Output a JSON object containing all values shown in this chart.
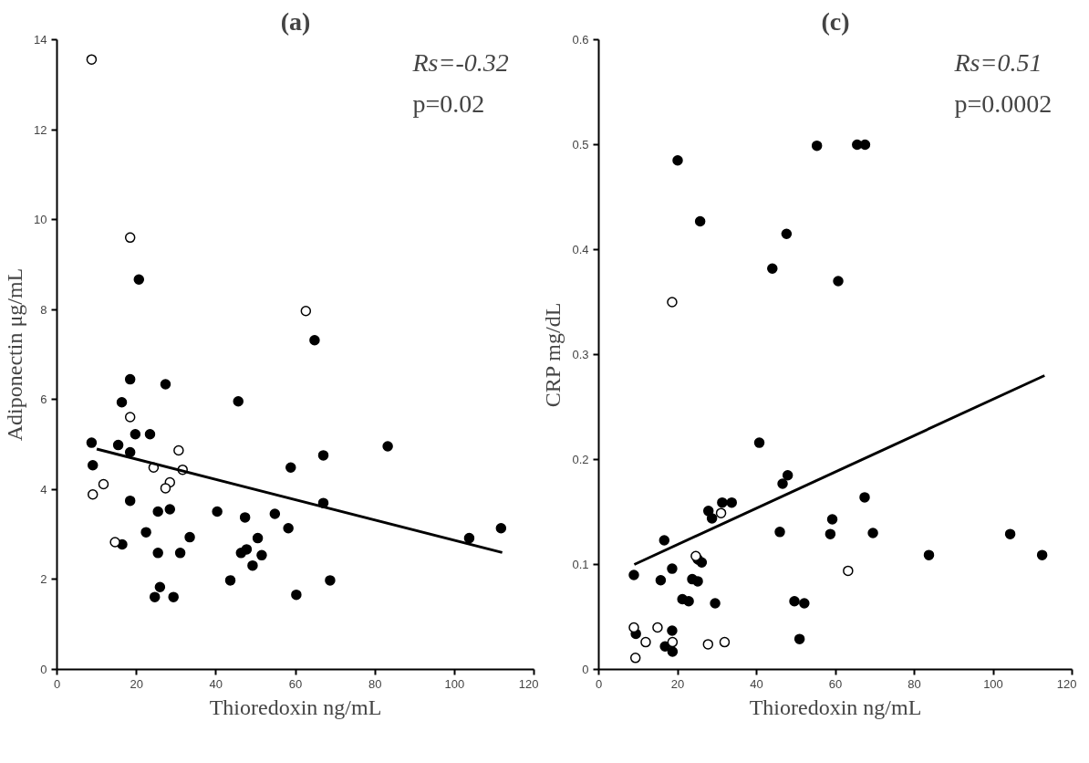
{
  "chart_data": [
    {
      "type": "scatter",
      "title": "(a)",
      "xlabel": "Thioredoxin ng/mL",
      "ylabel": "Adiponectin μg/mL",
      "xlim": [
        0,
        120
      ],
      "xticks": [
        0,
        20,
        40,
        60,
        80,
        100,
        120
      ],
      "ylim": [
        0,
        14
      ],
      "yticks": [
        0,
        2,
        4,
        6,
        8,
        10,
        12,
        14
      ],
      "annotations": [
        "Rs=-0.32",
        "p=0.02"
      ],
      "series": [
        {
          "color": "#000000",
          "marker": "circle",
          "x": [
            64.8,
            67.0,
            67.0,
            68.7,
            58.8,
            58.2,
            60.2,
            54.8,
            51.5,
            50.5,
            49.2,
            47.3,
            47.7,
            46.3,
            45.6,
            43.6,
            40.3,
            33.4,
            31.0,
            29.3,
            27.3,
            28.4,
            25.4,
            25.4,
            25.9,
            24.6,
            23.4,
            22.4,
            20.6,
            19.7,
            18.4,
            18.4,
            18.4,
            16.3,
            15.4,
            16.4,
            8.7,
            9.0,
            111.7,
            103.7,
            83.2
          ],
          "values": [
            7.32,
            4.76,
            3.7,
            1.98,
            4.49,
            3.14,
            1.66,
            3.46,
            2.54,
            2.92,
            2.31,
            3.38,
            2.67,
            2.59,
            5.96,
            1.98,
            3.51,
            2.94,
            2.59,
            1.61,
            6.34,
            3.56,
            3.51,
            2.59,
            1.83,
            1.61,
            5.23,
            3.05,
            8.67,
            5.23,
            6.45,
            4.83,
            3.75,
            5.94,
            4.99,
            2.78,
            5.04,
            4.54,
            3.14,
            2.92,
            4.96
          ]
        },
        {
          "color": "#ffffff",
          "marker": "circle",
          "x": [
            62.6,
            8.7,
            18.4,
            18.4,
            30.6,
            31.6,
            28.4,
            27.3,
            24.3,
            14.6,
            11.7,
            9.0
          ],
          "values": [
            7.97,
            13.56,
            9.6,
            5.61,
            4.87,
            4.44,
            4.16,
            4.03,
            4.49,
            2.83,
            4.12,
            3.89
          ]
        },
        {
          "type": "line",
          "color": "#000000",
          "x": [
            10,
            112
          ],
          "values": [
            4.9,
            2.6
          ]
        }
      ]
    },
    {
      "type": "scatter",
      "title": "(c)",
      "xlabel": "Thioredoxin ng/mL",
      "ylabel": "CRP mg/dL",
      "xlim": [
        0,
        120
      ],
      "xticks": [
        0,
        20,
        40,
        60,
        80,
        100,
        120
      ],
      "ylim": [
        0,
        0.6
      ],
      "yticks": [
        0,
        0.1,
        0.2,
        0.3,
        0.4,
        0.5,
        0.6
      ],
      "annotations": [
        "Rs=0.51",
        "p=0.0002"
      ],
      "series": [
        {
          "color": "#000000",
          "marker": "circle",
          "x": [
            60.7,
            55.3,
            47.6,
            44.0,
            40.7,
            47.9,
            46.6,
            59.2,
            58.7,
            52.1,
            49.6,
            50.9,
            45.9,
            33.7,
            31.3,
            27.8,
            28.7,
            29.5,
            26.1,
            25.1,
            25.1,
            23.7,
            22.8,
            21.2,
            25.7,
            20.0,
            18.6,
            16.6,
            15.7,
            18.6,
            18.7,
            16.8,
            8.9,
            9.4,
            67.5,
            65.5,
            67.4,
            69.5,
            83.7,
            104.3,
            112.4
          ],
          "values": [
            0.37,
            0.499,
            0.415,
            0.382,
            0.216,
            0.185,
            0.177,
            0.143,
            0.129,
            0.063,
            0.065,
            0.029,
            0.131,
            0.159,
            0.159,
            0.151,
            0.144,
            0.063,
            0.102,
            0.105,
            0.084,
            0.086,
            0.065,
            0.067,
            0.427,
            0.485,
            0.096,
            0.123,
            0.085,
            0.037,
            0.017,
            0.022,
            0.09,
            0.034,
            0.5,
            0.5,
            0.164,
            0.13,
            0.109,
            0.129,
            0.109
          ]
        },
        {
          "color": "#ffffff",
          "marker": "circle",
          "x": [
            63.2,
            18.6,
            31.0,
            31.9,
            27.7,
            24.6,
            14.9,
            11.9,
            8.9,
            9.3,
            18.7
          ],
          "values": [
            0.094,
            0.35,
            0.149,
            0.026,
            0.024,
            0.108,
            0.04,
            0.026,
            0.04,
            0.011,
            0.026
          ]
        },
        {
          "type": "line",
          "color": "#000000",
          "x": [
            9,
            113
          ],
          "values": [
            0.1,
            0.28
          ]
        }
      ]
    }
  ]
}
